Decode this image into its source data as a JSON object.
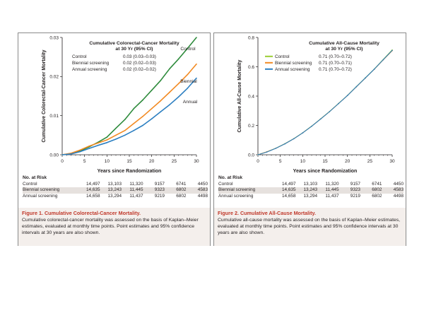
{
  "chart_data": [
    {
      "type": "line",
      "title": "Cumulative Colorectal-Cancer Mortality",
      "subtitle": "at 30 Yr (95% CI)",
      "xlabel": "Years since Randomization",
      "ylabel": "Cumulative Colorectal-Cancer Mortality",
      "xlim": [
        0,
        30
      ],
      "ylim": [
        0,
        0.03
      ],
      "x_ticks": [
        "0",
        "5",
        "10",
        "15",
        "20",
        "25",
        "30"
      ],
      "y_ticks": [
        "0.00",
        "0.01",
        "0.02",
        "0.03"
      ],
      "grid": false,
      "legend": [
        {
          "label": "Control",
          "estimate": "0.03 (0.03–0.03)"
        },
        {
          "label": "Biennial screening",
          "estimate": "0.02 (0.02–0.03)"
        },
        {
          "label": "Annual screening",
          "estimate": "0.02 (0.02–0.02)"
        }
      ],
      "line_labels": [
        "Control",
        "Biennial",
        "Annual"
      ],
      "x": [
        0,
        2,
        4,
        6,
        8,
        10,
        12,
        14,
        16,
        18,
        20,
        22,
        24,
        26,
        28,
        30
      ],
      "series": [
        {
          "name": "Control",
          "color": "#2e8b3c",
          "values": [
            0,
            0.0003,
            0.001,
            0.002,
            0.0032,
            0.0045,
            0.0068,
            0.009,
            0.0118,
            0.014,
            0.0165,
            0.019,
            0.022,
            0.0245,
            0.0272,
            0.03
          ]
        },
        {
          "name": "Biennial screening",
          "color": "#f28a22",
          "values": [
            0,
            0.0004,
            0.0012,
            0.0022,
            0.003,
            0.0038,
            0.005,
            0.0062,
            0.008,
            0.0098,
            0.0118,
            0.0138,
            0.016,
            0.0182,
            0.0205,
            0.0232
          ]
        },
        {
          "name": "Annual screening",
          "color": "#2c7fc1",
          "values": [
            0,
            0.0002,
            0.0008,
            0.0016,
            0.0024,
            0.0031,
            0.004,
            0.005,
            0.0062,
            0.0075,
            0.0092,
            0.011,
            0.0128,
            0.0148,
            0.017,
            0.0196
          ]
        }
      ]
    },
    {
      "type": "line",
      "title": "Cumulative All-Cause Mortality",
      "subtitle": "at 30 Yr (95% CI)",
      "xlabel": "Years since Randomization",
      "ylabel": "Cumulative All-Cause Mortality",
      "xlim": [
        0,
        30
      ],
      "ylim": [
        0,
        0.8
      ],
      "x_ticks": [
        "0",
        "5",
        "10",
        "15",
        "20",
        "25",
        "30"
      ],
      "y_ticks": [
        "0.0",
        "0.2",
        "0.4",
        "0.6",
        "0.8"
      ],
      "grid": false,
      "legend": [
        {
          "label": "Control",
          "estimate": "0.71 (0.70–0.72)"
        },
        {
          "label": "Biennial screening",
          "estimate": "0.71 (0.70–0.71)"
        },
        {
          "label": "Annual screening",
          "estimate": "0.71 (0.70–0.72)"
        }
      ],
      "x": [
        0,
        2,
        4,
        6,
        8,
        10,
        12,
        14,
        16,
        18,
        20,
        22,
        24,
        26,
        28,
        30
      ],
      "series": [
        {
          "name": "Control",
          "color": "#9acd32",
          "values": [
            0,
            0.02,
            0.045,
            0.075,
            0.11,
            0.15,
            0.195,
            0.245,
            0.295,
            0.35,
            0.405,
            0.465,
            0.525,
            0.585,
            0.65,
            0.715
          ]
        },
        {
          "name": "Biennial screening",
          "color": "#f28a22",
          "values": [
            0,
            0.02,
            0.044,
            0.074,
            0.109,
            0.149,
            0.194,
            0.244,
            0.294,
            0.349,
            0.404,
            0.463,
            0.523,
            0.583,
            0.647,
            0.71
          ]
        },
        {
          "name": "Annual screening",
          "color": "#2c7fc1",
          "values": [
            0,
            0.019,
            0.044,
            0.074,
            0.109,
            0.149,
            0.194,
            0.244,
            0.294,
            0.349,
            0.404,
            0.464,
            0.524,
            0.584,
            0.648,
            0.712
          ]
        }
      ]
    }
  ],
  "risk_tables": [
    {
      "header": "No. at Risk",
      "rows": [
        {
          "label": "Control",
          "values": [
            "14,497",
            "13,103",
            "11,320",
            "9157",
            "6741",
            "4450"
          ]
        },
        {
          "label": "Biennial screening",
          "values": [
            "14,635",
            "13,243",
            "11,445",
            "9323",
            "6802",
            "4583"
          ]
        },
        {
          "label": "Annual screening",
          "values": [
            "14,658",
            "13,294",
            "11,437",
            "9219",
            "6802",
            "4498"
          ]
        }
      ]
    },
    {
      "header": "No. at Risk",
      "rows": [
        {
          "label": "Control",
          "values": [
            "14,497",
            "13,103",
            "11,320",
            "9157",
            "6741",
            "4450"
          ]
        },
        {
          "label": "Biennial screening",
          "values": [
            "14,635",
            "13,243",
            "11,445",
            "9323",
            "6802",
            "4583"
          ]
        },
        {
          "label": "Annual screening",
          "values": [
            "14,658",
            "13,294",
            "11,437",
            "9219",
            "6802",
            "4498"
          ]
        }
      ]
    }
  ],
  "captions": [
    {
      "title": "Figure 1. Cumulative Colorectal-Cancer Mortality.",
      "text": "Cumulative colorectal-cancer mortality was assessed on the basis of Kaplan–Meier estimates, evaluated at monthly time points. Point estimates and 95% confidence intervals at 30 years are also shown."
    },
    {
      "title": "Figure 2. Cumulative All-Cause Mortality.",
      "text": "Cumulative all-cause mortality was assessed on the basis of Kaplan–Meier estimates, evaluated at monthly time points. Point estimates and 95% confidence intervals at 30 years are also shown."
    }
  ]
}
